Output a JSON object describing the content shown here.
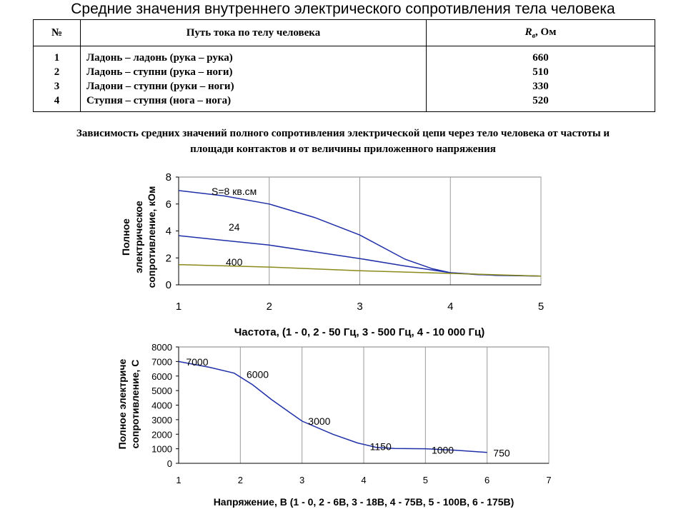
{
  "title": "Средние значения внутреннего электрического сопротивления тела человека",
  "table": {
    "headers": [
      "№",
      "Путь тока по телу человека",
      "R",
      "в",
      ", Ом"
    ],
    "rows": [
      {
        "num": "1",
        "path": "Ладонь – ладонь (рука – рука)",
        "value": "660"
      },
      {
        "num": "2",
        "path": "Ладонь – ступни (рука – ноги)",
        "value": "510"
      },
      {
        "num": "3",
        "path": "Ладони – ступни (руки – ноги)",
        "value": "330"
      },
      {
        "num": "4",
        "path": "Ступня – ступня (нога – нога)",
        "value": "520"
      }
    ]
  },
  "subtitle": [
    "Зависимость средних значений полного сопротивления электрической цепи через тело человека от частоты и",
    "площади контактов и от величины приложенного напряжения"
  ],
  "chart_data": [
    {
      "type": "line",
      "xlabel": "Частота, (1 - 0, 2 - 50 Гц, 3 - 500 Гц, 4 - 10 000 Гц)",
      "ylabel": [
        "Полное",
        "электрическое",
        "сопротивление, кОм"
      ],
      "xlim": [
        1,
        5
      ],
      "ylim": [
        0,
        8
      ],
      "xticks": [
        "1",
        "2",
        "3",
        "4",
        "5"
      ],
      "yticks": [
        "0",
        "2",
        "4",
        "6",
        "8"
      ],
      "grid": true,
      "series": [
        {
          "name": "S=8 кв.см",
          "color": "#1f2fa8",
          "x": [
            1,
            1.5,
            2,
            2.5,
            3,
            3.5,
            3.8,
            4,
            4.3,
            5
          ],
          "y": [
            7.0,
            6.6,
            6.0,
            5.0,
            3.7,
            1.9,
            1.2,
            0.9,
            0.75,
            0.65
          ]
        },
        {
          "name": "24",
          "color": "#1f2fa8",
          "x": [
            1,
            1.5,
            2,
            2.5,
            3,
            3.5,
            4,
            4.5,
            5
          ],
          "y": [
            3.65,
            3.3,
            2.95,
            2.45,
            1.95,
            1.4,
            0.9,
            0.7,
            0.65
          ]
        },
        {
          "name": "400",
          "color": "#8a8a1a",
          "x": [
            1,
            2,
            3,
            4,
            5
          ],
          "y": [
            1.5,
            1.32,
            1.05,
            0.85,
            0.65
          ]
        }
      ]
    },
    {
      "type": "line",
      "xlabel": "Напряжение, В (1 - 0, 2 - 6В, 3 - 18В, 4 - 75В, 5 - 100В, 6 - 175В)",
      "ylabel": [
        "Полное электриче",
        "сопротивление, С"
      ],
      "xlim": [
        1,
        7
      ],
      "ylim": [
        0,
        8000
      ],
      "xticks": [
        "1",
        "2",
        "3",
        "4",
        "5",
        "6",
        "7"
      ],
      "yticks": [
        "0",
        "1000",
        "2000",
        "3000",
        "4000",
        "5000",
        "6000",
        "7000",
        "8000"
      ],
      "grid": true,
      "series": [
        {
          "color": "#1f2fa8",
          "x": [
            1,
            1.5,
            1.9,
            2.2,
            2.5,
            2.8,
            3,
            3.5,
            3.9,
            4.2,
            4.5,
            5,
            5.5,
            6
          ],
          "y": [
            7000,
            6600,
            6200,
            5400,
            4400,
            3500,
            2900,
            2000,
            1400,
            1100,
            1020,
            1000,
            900,
            750
          ]
        }
      ],
      "data_labels": [
        {
          "x": 1.12,
          "y": 6980,
          "text": "7000"
        },
        {
          "x": 2.1,
          "y": 6100,
          "text": "6000"
        },
        {
          "x": 3.1,
          "y": 2900,
          "text": "3000"
        },
        {
          "x": 4.1,
          "y": 1150,
          "text": "1150"
        },
        {
          "x": 5.1,
          "y": 920,
          "text": "1000"
        },
        {
          "x": 6.1,
          "y": 720,
          "text": "750"
        }
      ]
    }
  ]
}
